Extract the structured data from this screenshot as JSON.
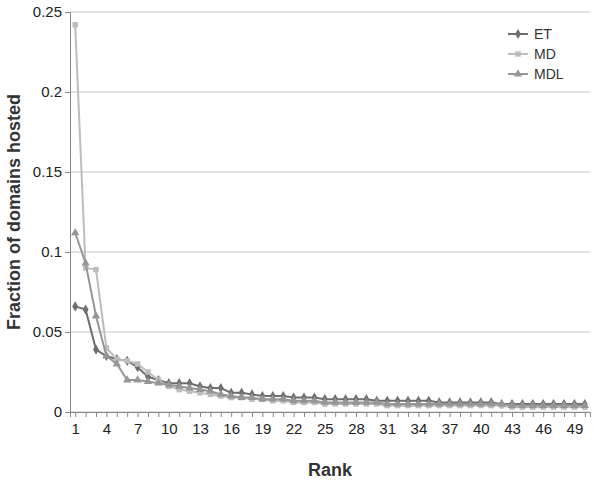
{
  "chart_data": {
    "type": "line",
    "x_label": "Rank",
    "y_label": "Fraction of domains hosted",
    "categories": [
      1,
      null,
      null,
      4,
      null,
      null,
      7,
      null,
      null,
      10,
      null,
      null,
      13,
      null,
      null,
      16,
      null,
      null,
      19,
      null,
      null,
      22,
      null,
      null,
      25,
      null,
      null,
      28,
      null,
      null,
      31,
      null,
      null,
      34,
      null,
      null,
      37,
      null,
      null,
      40,
      null,
      null,
      43,
      null,
      null,
      46,
      null,
      null,
      49,
      null
    ],
    "series": [
      {
        "name": "ET",
        "color": "#6e6e6e",
        "marker": "diamond",
        "values": [
          0.066,
          0.064,
          0.039,
          0.035,
          0.033,
          0.032,
          0.028,
          0.022,
          0.02,
          0.018,
          0.018,
          0.018,
          0.016,
          0.015,
          0.015,
          0.012,
          0.012,
          0.011,
          0.01,
          0.01,
          0.01,
          0.009,
          0.009,
          0.009,
          0.008,
          0.008,
          0.008,
          0.008,
          0.008,
          0.007,
          0.007,
          0.007,
          0.007,
          0.007,
          0.007,
          0.006,
          0.006,
          0.006,
          0.006,
          0.006,
          0.006,
          0.005,
          0.005,
          0.005,
          0.005,
          0.005,
          0.005,
          0.005,
          0.005,
          0.005
        ]
      },
      {
        "name": "MD",
        "color": "#bdbdbd",
        "marker": "square",
        "values": [
          0.242,
          0.09,
          0.089,
          0.04,
          0.033,
          0.032,
          0.03,
          0.025,
          0.02,
          0.016,
          0.014,
          0.013,
          0.012,
          0.011,
          0.01,
          0.009,
          0.009,
          0.008,
          0.008,
          0.007,
          0.007,
          0.006,
          0.006,
          0.006,
          0.005,
          0.005,
          0.005,
          0.005,
          0.005,
          0.005,
          0.004,
          0.004,
          0.004,
          0.004,
          0.004,
          0.004,
          0.004,
          0.004,
          0.004,
          0.004,
          0.004,
          0.004,
          0.003,
          0.003,
          0.003,
          0.003,
          0.003,
          0.003,
          0.003,
          0.003
        ]
      },
      {
        "name": "MDL",
        "color": "#969696",
        "marker": "triangle",
        "values": [
          0.112,
          0.093,
          0.06,
          0.035,
          0.03,
          0.02,
          0.02,
          0.019,
          0.018,
          0.017,
          0.016,
          0.015,
          0.014,
          0.013,
          0.011,
          0.01,
          0.009,
          0.009,
          0.008,
          0.008,
          0.008,
          0.007,
          0.007,
          0.007,
          0.006,
          0.006,
          0.006,
          0.006,
          0.006,
          0.006,
          0.005,
          0.005,
          0.005,
          0.005,
          0.005,
          0.005,
          0.005,
          0.005,
          0.005,
          0.005,
          0.005,
          0.005,
          0.004,
          0.004,
          0.004,
          0.004,
          0.004,
          0.004,
          0.004,
          0.004
        ]
      }
    ],
    "ylim": [
      0,
      0.25
    ],
    "yticks": [
      0,
      0.05,
      0.1,
      0.15,
      0.2,
      0.25
    ],
    "grid": true,
    "legend": "top-right"
  }
}
